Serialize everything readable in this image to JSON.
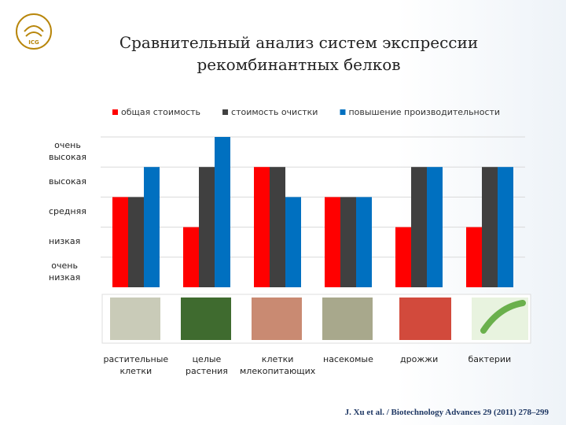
{
  "logo": {
    "text": "ICG"
  },
  "chart_data": {
    "type": "bar",
    "title": "Сравнительный анализ систем экспрессии рекомбинантных белков",
    "categories": [
      "растительные клетки",
      "целые растения",
      "клетки млекопитающих",
      "насекомые",
      "дрожжи",
      "бактерии"
    ],
    "series": [
      {
        "name": "общая стоимость",
        "color": "#ff0000",
        "values": [
          3,
          2,
          4,
          3,
          2,
          2
        ]
      },
      {
        "name": "стоимость очистки",
        "color": "#404040",
        "values": [
          3,
          4,
          4,
          3,
          4,
          4
        ]
      },
      {
        "name": "повышение производительности",
        "color": "#0070c0",
        "values": [
          4,
          5,
          3,
          3,
          4,
          4
        ]
      }
    ],
    "ylim": [
      0,
      5
    ],
    "yticks": [
      {
        "value": 1,
        "label": "очень низкая"
      },
      {
        "value": 2,
        "label": "низкая"
      },
      {
        "value": 3,
        "label": "средняя"
      },
      {
        "value": 4,
        "label": "высокая"
      },
      {
        "value": 5,
        "label": "очень высокая"
      }
    ],
    "grid": true,
    "legend": "top",
    "source": "J. Xu et al. / Biotechnology Advances 29 (2011) 278–299"
  }
}
